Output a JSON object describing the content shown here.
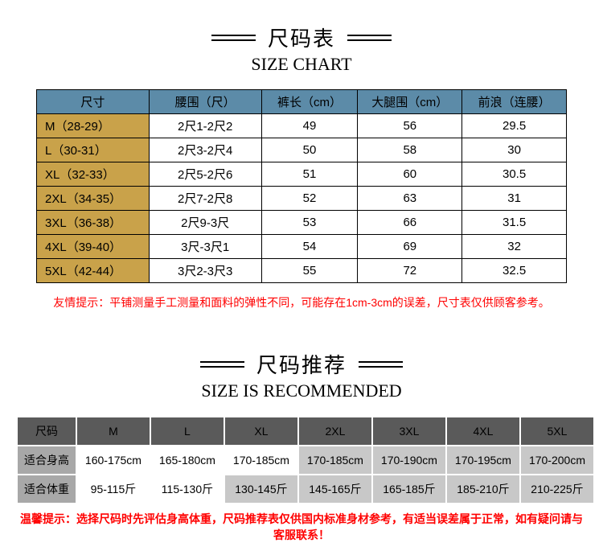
{
  "chart": {
    "heading_ch": "尺码表",
    "heading_en": "SIZE CHART",
    "header_bg": "#5c8ba8",
    "header_color": "#000000",
    "size_col_bg": "#c9a24a",
    "row_bg": "#ffffff",
    "border": "#000000",
    "columns": [
      "尺寸",
      "腰围（尺）",
      "裤长（cm）",
      "大腿围（cm）",
      "前浪（连腰）"
    ],
    "col_widths": [
      "140px",
      "140px",
      "120px",
      "130px",
      "130px"
    ],
    "rows": [
      [
        "M（28-29）",
        "2尺1-2尺2",
        "49",
        "56",
        "29.5"
      ],
      [
        "L（30-31）",
        "2尺3-2尺4",
        "50",
        "58",
        "30"
      ],
      [
        "XL（32-33）",
        "2尺5-2尺6",
        "51",
        "60",
        "30.5"
      ],
      [
        "2XL（34-35）",
        "2尺7-2尺8",
        "52",
        "63",
        "31"
      ],
      [
        "3XL（36-38）",
        "2尺9-3尺",
        "53",
        "66",
        "31.5"
      ],
      [
        "4XL（39-40）",
        "3尺-3尺1",
        "54",
        "69",
        "32"
      ],
      [
        "5XL（42-44）",
        "3尺2-3尺3",
        "55",
        "72",
        "32.5"
      ]
    ],
    "tip": "友情提示：平铺测量手工测量和面料的弹性不同，可能存在1cm-3cm的误差，尺寸表仅供顾客参考。",
    "tip_color": "#ff0000"
  },
  "rec": {
    "heading_ch": "尺码推荐",
    "heading_en": "SIZE IS RECOMMENDED",
    "header_bg": "#5a5a5a",
    "header_color": "#000000",
    "label_bg": "#a8a8a8",
    "odd_cell_bg": "#ffffff",
    "even_cell_bg": "#c8c8c8",
    "columns": [
      "尺码",
      "M",
      "L",
      "XL",
      "2XL",
      "3XL",
      "4XL",
      "5XL"
    ],
    "rows": [
      {
        "label": "适合身高",
        "cells": [
          "160-175cm",
          "165-180cm",
          "170-185cm",
          "170-185cm",
          "170-190cm",
          "170-195cm",
          "170-200cm"
        ]
      },
      {
        "label": "适合体重",
        "cells": [
          "95-115斤",
          "115-130斤",
          "130-145斤",
          "145-165斤",
          "165-185斤",
          "185-210斤",
          "210-225斤"
        ]
      }
    ],
    "tip": "温馨提示：选择尺码时先评估身高体重，尺码推荐表仅供国内标准身材参考，有适当误差属于正常，如有疑问请与客服联系！",
    "tip_color": "#ff0000"
  }
}
